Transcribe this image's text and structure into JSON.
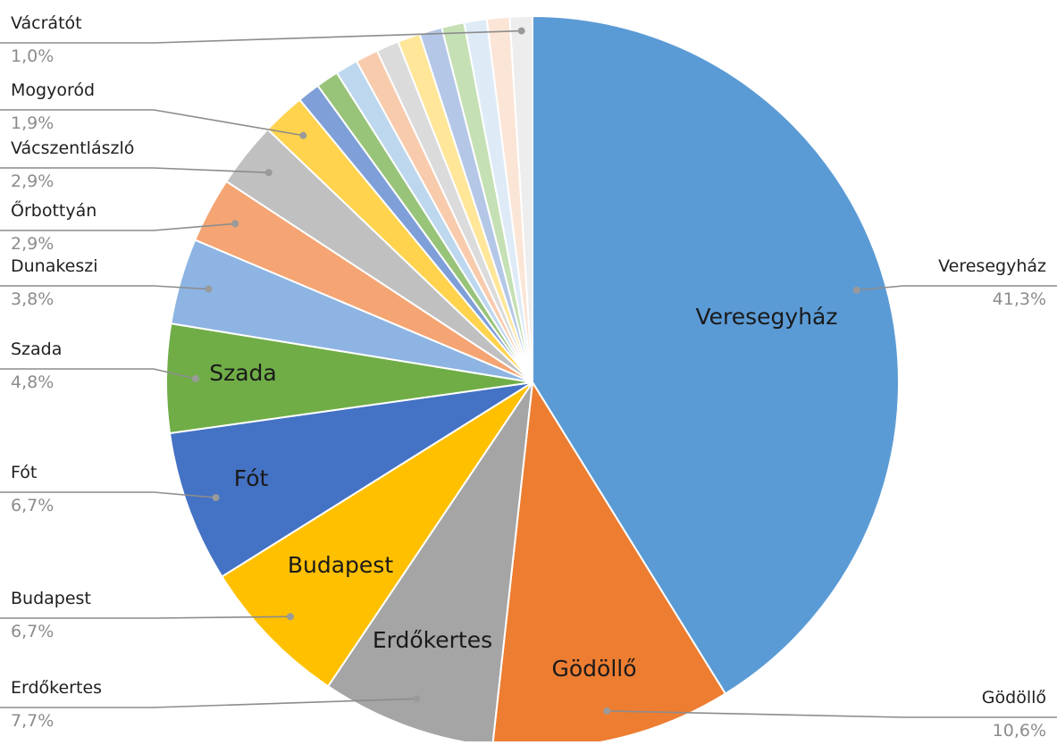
{
  "chart_data": {
    "type": "pie",
    "title": "",
    "start_angle_deg": 0,
    "direction": "clockwise",
    "slices": [
      {
        "name": "Veresegyház",
        "value": 41.3,
        "value_label": "41,3%",
        "color": "#5b9bd5",
        "inner_label": "Veresegyház",
        "side": "right"
      },
      {
        "name": "Gödöllő",
        "value": 10.6,
        "value_label": "10,6%",
        "color": "#ed7d31",
        "inner_label": "Gödöllő",
        "side": "right"
      },
      {
        "name": "Erdőkertes",
        "value": 7.7,
        "value_label": "7,7%",
        "color": "#a5a5a5",
        "inner_label": "Erdőkertes",
        "side": "left"
      },
      {
        "name": "Budapest",
        "value": 6.7,
        "value_label": "6,7%",
        "color": "#ffc000",
        "inner_label": "Budapest",
        "side": "left"
      },
      {
        "name": "Fót",
        "value": 6.7,
        "value_label": "6,7%",
        "color": "#4472c4",
        "inner_label": "Fót",
        "side": "left"
      },
      {
        "name": "Szada",
        "value": 4.8,
        "value_label": "4,8%",
        "color": "#70ad47",
        "inner_label": "Szada",
        "side": "left"
      },
      {
        "name": "Dunakeszi",
        "value": 3.8,
        "value_label": "3,8%",
        "color": "#8db4e2",
        "inner_label": "",
        "side": "left"
      },
      {
        "name": "Őrbottyán",
        "value": 2.9,
        "value_label": "2,9%",
        "color": "#f4a573",
        "inner_label": "",
        "side": "left"
      },
      {
        "name": "Vácszentlászló",
        "value": 2.9,
        "value_label": "2,9%",
        "color": "#c0c0c0",
        "inner_label": "",
        "side": "left"
      },
      {
        "name": "Mogyoród",
        "value": 1.9,
        "value_label": "1,9%",
        "color": "#ffd34d",
        "inner_label": "",
        "side": "left"
      },
      {
        "name": "",
        "value": 1.0,
        "value_label": "",
        "color": "#7f9fd8",
        "inner_label": "",
        "side": "none"
      },
      {
        "name": "",
        "value": 1.0,
        "value_label": "",
        "color": "#98c47a",
        "inner_label": "",
        "side": "none"
      },
      {
        "name": "",
        "value": 1.0,
        "value_label": "",
        "color": "#bdd7ee",
        "inner_label": "",
        "side": "none"
      },
      {
        "name": "",
        "value": 1.0,
        "value_label": "",
        "color": "#f8cbad",
        "inner_label": "",
        "side": "none"
      },
      {
        "name": "",
        "value": 1.0,
        "value_label": "",
        "color": "#dbdbdb",
        "inner_label": "",
        "side": "none"
      },
      {
        "name": "",
        "value": 1.0,
        "value_label": "",
        "color": "#ffe699",
        "inner_label": "",
        "side": "none"
      },
      {
        "name": "",
        "value": 1.0,
        "value_label": "",
        "color": "#b4c7e7",
        "inner_label": "",
        "side": "none"
      },
      {
        "name": "",
        "value": 1.0,
        "value_label": "",
        "color": "#c5e0b4",
        "inner_label": "",
        "side": "none"
      },
      {
        "name": "",
        "value": 1.0,
        "value_label": "",
        "color": "#deebf7",
        "inner_label": "",
        "side": "none"
      },
      {
        "name": "",
        "value": 1.0,
        "value_label": "",
        "color": "#fbe5d6",
        "inner_label": "",
        "side": "none"
      },
      {
        "name": "Vácrátót",
        "value": 1.0,
        "value_label": "1,0%",
        "color": "#ededed",
        "inner_label": "",
        "side": "left"
      }
    ],
    "legend": "none",
    "data_labels": "outside-with-leader-lines"
  }
}
